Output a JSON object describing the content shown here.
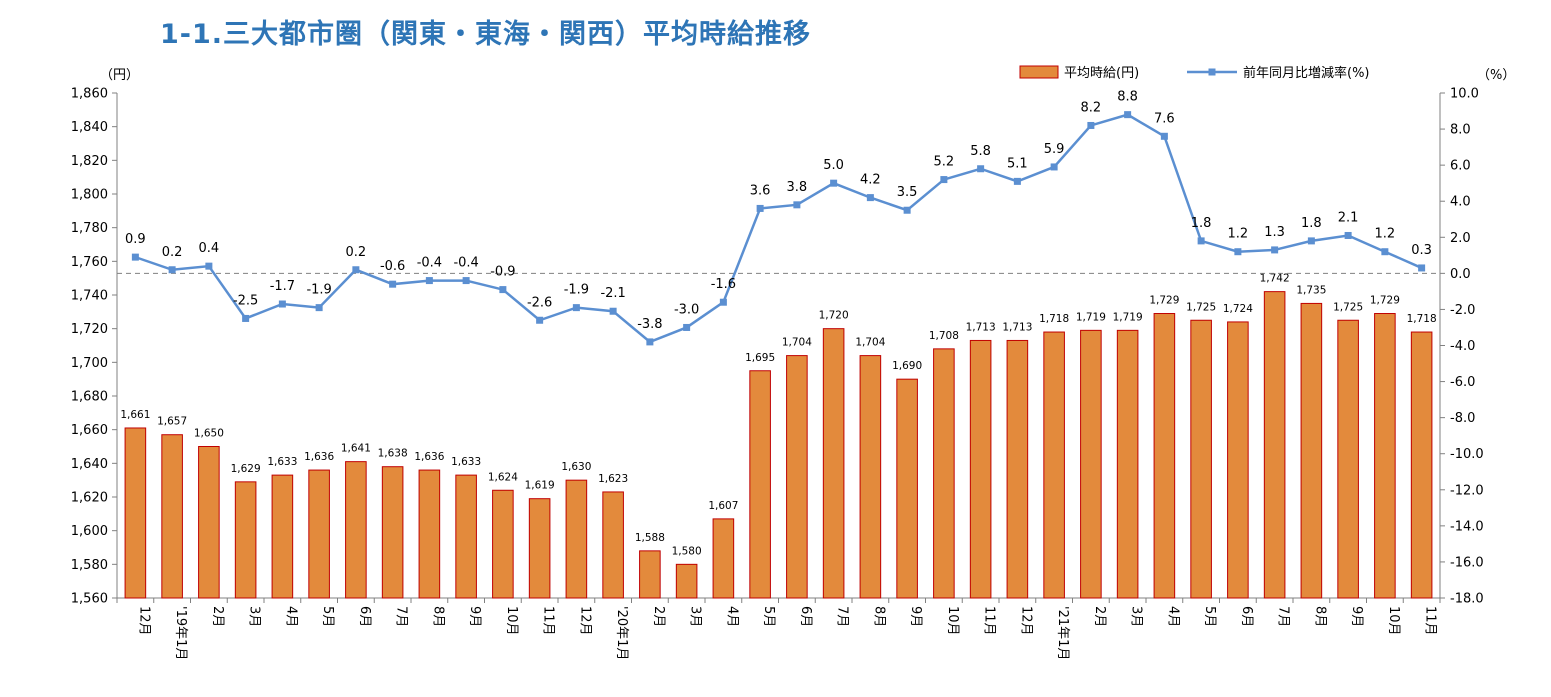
{
  "title": "1-1.三大都市圏（関東・東海・関西）平均時給推移",
  "chart_data": {
    "type": "bar+line",
    "categories": [
      "12月",
      "'19年1月",
      "2月",
      "3月",
      "4月",
      "5月",
      "6月",
      "7月",
      "8月",
      "9月",
      "10月",
      "11月",
      "12月",
      "'20年1月",
      "2月",
      "3月",
      "4月",
      "5月",
      "6月",
      "7月",
      "8月",
      "9月",
      "10月",
      "11月",
      "12月",
      "'21年1月",
      "2月",
      "3月",
      "4月",
      "5月",
      "6月",
      "7月",
      "8月",
      "9月",
      "10月",
      "11月"
    ],
    "series": [
      {
        "name": "平均時給(円)",
        "type": "bar",
        "axis": "left",
        "color": "#e38a3c",
        "values": [
          1661,
          1657,
          1650,
          1629,
          1633,
          1636,
          1641,
          1638,
          1636,
          1633,
          1624,
          1619,
          1630,
          1623,
          1588,
          1580,
          1607,
          1695,
          1704,
          1720,
          1704,
          1690,
          1708,
          1713,
          1713,
          1718,
          1719,
          1719,
          1729,
          1725,
          1724,
          1742,
          1735,
          1725,
          1729,
          1718
        ],
        "labels": [
          "1,661",
          "1,657",
          "1,650",
          "1,629",
          "1,633",
          "1,636",
          "1,641",
          "1,638",
          "1,636",
          "1,633",
          "1,624",
          "1,619",
          "1,630",
          "1,623",
          "1,588",
          "1,580",
          "1,607",
          "1,695",
          "1,704",
          "1,720",
          "1,704",
          "1,690",
          "1,708",
          "1,713",
          "1,713",
          "1,718",
          "1,719",
          "1,719",
          "1,729",
          "1,725",
          "1,724",
          "1,742",
          "1,735",
          "1,725",
          "1,729",
          "1,718"
        ]
      },
      {
        "name": "前年同月比増減率(%)",
        "type": "line",
        "axis": "right",
        "color": "#5b8fd1",
        "values": [
          0.9,
          0.2,
          0.4,
          -2.5,
          -1.7,
          -1.9,
          0.2,
          -0.6,
          -0.4,
          -0.4,
          -0.9,
          -2.6,
          -1.9,
          -2.1,
          -3.8,
          -3.0,
          -1.6,
          3.6,
          3.8,
          5.0,
          4.2,
          3.5,
          5.2,
          5.8,
          5.1,
          5.9,
          8.2,
          8.8,
          7.6,
          1.8,
          1.2,
          1.3,
          1.8,
          2.1,
          1.2,
          0.3
        ],
        "labels": [
          "0.9",
          "0.2",
          "0.4",
          "-2.5",
          "-1.7",
          "-1.9",
          "0.2",
          "-0.6",
          "-0.4",
          "-0.4",
          "-0.9",
          "-2.6",
          "-1.9",
          "-2.1",
          "-3.8",
          "-3.0",
          "-1.6",
          "3.6",
          "3.8",
          "5.0",
          "4.2",
          "3.5",
          "5.2",
          "5.8",
          "5.1",
          "5.9",
          "8.2",
          "8.8",
          "7.6",
          "1.8",
          "1.2",
          "1.3",
          "1.8",
          "2.1",
          "1.2",
          "0.3"
        ]
      }
    ],
    "left_axis": {
      "unit": "（円）",
      "min": 1560,
      "max": 1860,
      "step": 20,
      "ticks": [
        "1,560",
        "1,580",
        "1,600",
        "1,620",
        "1,640",
        "1,660",
        "1,680",
        "1,700",
        "1,720",
        "1,740",
        "1,760",
        "1,780",
        "1,800",
        "1,820",
        "1,840",
        "1,860"
      ]
    },
    "right_axis": {
      "unit": "（%）",
      "min": -18,
      "max": 10,
      "step": 2,
      "ticks": [
        "-18.0",
        "-16.0",
        "-14.0",
        "-12.0",
        "-10.0",
        "-8.0",
        "-6.0",
        "-4.0",
        "-2.0",
        "0.0",
        "2.0",
        "4.0",
        "6.0",
        "8.0",
        "10.0"
      ]
    },
    "zero_line": "dashed",
    "grid": false,
    "legend_position": "top-right",
    "bar_border_color": "#c00000"
  }
}
